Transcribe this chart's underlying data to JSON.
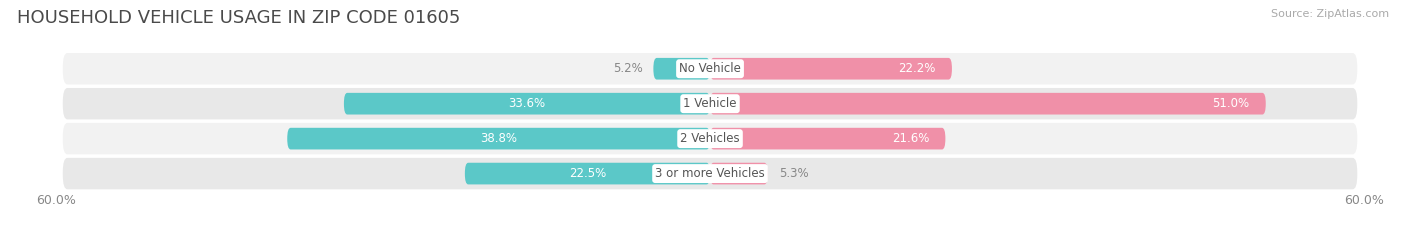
{
  "title": "HOUSEHOLD VEHICLE USAGE IN ZIP CODE 01605",
  "source": "Source: ZipAtlas.com",
  "categories": [
    "No Vehicle",
    "1 Vehicle",
    "2 Vehicles",
    "3 or more Vehicles"
  ],
  "owner_values": [
    5.2,
    33.6,
    38.8,
    22.5
  ],
  "renter_values": [
    22.2,
    51.0,
    21.6,
    5.3
  ],
  "owner_color": "#5BC8C8",
  "renter_color": "#F090A8",
  "fig_bg_color": "#FFFFFF",
  "axis_max": 60.0,
  "x_axis_label_left": "60.0%",
  "x_axis_label_right": "60.0%",
  "title_fontsize": 13,
  "source_fontsize": 8,
  "tick_fontsize": 9,
  "bar_label_fontsize": 8.5,
  "category_fontsize": 8.5,
  "legend_fontsize": 9,
  "bar_height": 0.62,
  "row_bg_colors": [
    "#F2F2F2",
    "#E8E8E8",
    "#F2F2F2",
    "#E8E8E8"
  ],
  "title_color": "#4A4A4A",
  "source_color": "#AAAAAA",
  "label_outside_color": "#888888",
  "category_label_color": "#555555"
}
